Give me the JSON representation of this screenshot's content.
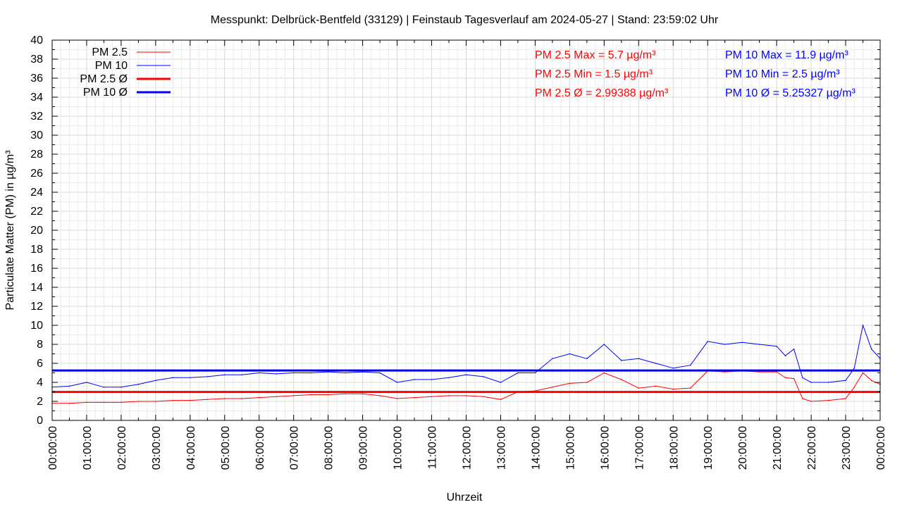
{
  "chart_data": {
    "type": "line",
    "title": "Messpunkt: Delbrück-Bentfeld (33129) | Feinstaub Tagesverlauf am 2024-05-27 | Stand: 23:59:02 Uhr",
    "xlabel": "Uhrzeit",
    "ylabel": "Particulate Matter (PM) in µg/m³",
    "ylim": [
      0,
      40
    ],
    "y_ticks": [
      "0",
      "2",
      "4",
      "6",
      "8",
      "10",
      "12",
      "14",
      "16",
      "18",
      "20",
      "22",
      "24",
      "26",
      "28",
      "30",
      "32",
      "34",
      "36",
      "38",
      "40"
    ],
    "x_ticks": [
      "00:00:00",
      "01:00:00",
      "02:00:00",
      "03:00:00",
      "04:00:00",
      "05:00:00",
      "06:00:00",
      "07:00:00",
      "08:00:00",
      "09:00:00",
      "10:00:00",
      "11:00:00",
      "12:00:00",
      "13:00:00",
      "14:00:00",
      "15:00:00",
      "16:00:00",
      "17:00:00",
      "18:00:00",
      "19:00:00",
      "20:00:00",
      "21:00:00",
      "22:00:00",
      "23:00:00",
      "00:00:00"
    ],
    "x_unit": "hours",
    "xlim": [
      0,
      24
    ],
    "grid": true,
    "legend_position": "top-left",
    "series": [
      {
        "name": "PM 2.5",
        "color": "#ff0000",
        "style": "thin",
        "x": [
          0,
          0.5,
          1,
          1.5,
          2,
          2.5,
          3,
          3.5,
          4,
          4.5,
          5,
          5.5,
          6,
          6.5,
          7,
          7.5,
          8,
          8.5,
          9,
          9.5,
          10,
          10.5,
          11,
          11.5,
          12,
          12.5,
          13,
          13.5,
          14,
          14.5,
          15,
          15.5,
          16,
          16.5,
          17,
          17.5,
          18,
          18.5,
          19,
          19.5,
          20,
          20.5,
          21,
          21.25,
          21.5,
          21.75,
          22,
          22.5,
          23,
          23.25,
          23.5,
          23.75,
          24
        ],
        "values": [
          1.8,
          1.8,
          1.9,
          1.9,
          1.9,
          2.0,
          2.0,
          2.1,
          2.1,
          2.2,
          2.3,
          2.3,
          2.4,
          2.5,
          2.6,
          2.7,
          2.7,
          2.8,
          2.8,
          2.6,
          2.3,
          2.4,
          2.5,
          2.6,
          2.6,
          2.5,
          2.2,
          3.0,
          3.1,
          3.5,
          3.9,
          4.0,
          5.0,
          4.3,
          3.4,
          3.6,
          3.3,
          3.4,
          5.2,
          5.1,
          5.2,
          5.1,
          5.1,
          4.5,
          4.4,
          2.3,
          2.0,
          2.1,
          2.3,
          3.5,
          5.0,
          4.2,
          3.8
        ]
      },
      {
        "name": "PM 10",
        "color": "#0000ff",
        "style": "thin",
        "x": [
          0,
          0.5,
          1,
          1.5,
          2,
          2.5,
          3,
          3.5,
          4,
          4.5,
          5,
          5.5,
          6,
          6.5,
          7,
          7.5,
          8,
          8.5,
          9,
          9.5,
          10,
          10.5,
          11,
          11.5,
          12,
          12.5,
          13,
          13.5,
          14,
          14.5,
          15,
          15.5,
          16,
          16.5,
          17,
          17.5,
          18,
          18.5,
          19,
          19.5,
          20,
          20.5,
          21,
          21.25,
          21.5,
          21.75,
          22,
          22.5,
          23,
          23.25,
          23.5,
          23.75,
          24
        ],
        "values": [
          3.5,
          3.6,
          4.0,
          3.5,
          3.5,
          3.8,
          4.2,
          4.5,
          4.5,
          4.6,
          4.8,
          4.8,
          5.0,
          4.9,
          5.0,
          5.0,
          5.1,
          5.0,
          5.1,
          5.0,
          4.0,
          4.3,
          4.3,
          4.5,
          4.8,
          4.6,
          4.0,
          5.0,
          5.0,
          6.5,
          7.0,
          6.5,
          8.0,
          6.3,
          6.5,
          6.0,
          5.5,
          5.8,
          8.3,
          8.0,
          8.2,
          8.0,
          7.8,
          6.8,
          7.5,
          4.5,
          4.0,
          4.0,
          4.2,
          5.5,
          10.0,
          7.5,
          6.5
        ]
      },
      {
        "name": "PM 2.5 Ø",
        "color": "#ff0000",
        "style": "thick",
        "constant": 2.99388
      },
      {
        "name": "PM 10 Ø",
        "color": "#0000ff",
        "style": "thick",
        "constant": 5.25327
      }
    ],
    "annotations": {
      "pm25": [
        "PM 2.5 Max = 5.7 µg/m³",
        "PM 2.5 Min = 1.5 µg/m³",
        "PM 2.5 Ø = 2.99388 µg/m³"
      ],
      "pm10": [
        "PM 10 Max = 11.9 µg/m³",
        "PM 10 Min = 2.5 µg/m³",
        "PM 10 Ø = 5.25327 µg/m³"
      ]
    },
    "stats": {
      "pm25": {
        "max": 5.7,
        "min": 1.5,
        "avg": 2.99388
      },
      "pm10": {
        "max": 11.9,
        "min": 2.5,
        "avg": 5.25327
      }
    }
  }
}
